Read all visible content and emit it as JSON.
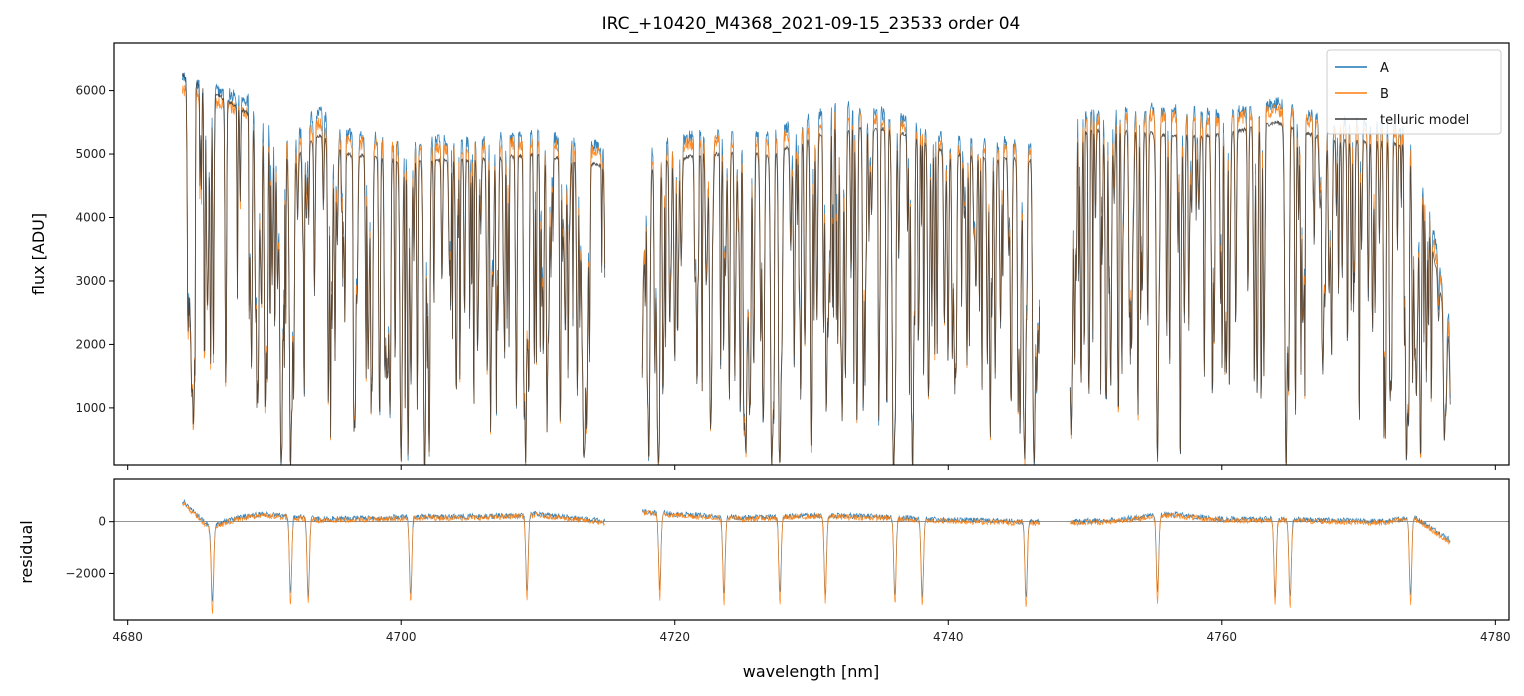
{
  "chart_data": [
    {
      "type": "line",
      "panel": "top",
      "title": "IRC_+10420_M4368_2021-09-15_23533  order 04",
      "xlabel": "",
      "ylabel": "flux [ADU]",
      "xlim": [
        4679,
        4781
      ],
      "ylim": [
        100,
        6750
      ],
      "yticks": [
        1000,
        2000,
        3000,
        4000,
        5000,
        6000
      ],
      "grid": false,
      "legend": "top-right",
      "gaps": [
        [
          4714.9,
          4717.6
        ],
        [
          4746.7,
          4748.9
        ]
      ],
      "deep_lines": [
        4691.2,
        4691.9,
        4700.0,
        4701.7,
        4709.1,
        4715.0,
        4718.1,
        4718.8,
        4727.1,
        4727.7,
        4736.0,
        4737.4,
        4745.6,
        4746.3,
        4755.3,
        4764.7,
        4773.5,
        4776.8
      ],
      "series": [
        {
          "name": "A",
          "color": "#1f77b4",
          "x": [
            4684,
            4688,
            4690,
            4692,
            4694,
            4696,
            4700,
            4705,
            4710,
            4714.9,
            4717.6,
            4722,
            4727,
            4732,
            4736,
            4740,
            4746.7,
            4748.9,
            4752,
            4756,
            4760,
            4764,
            4768,
            4772,
            4774,
            4776.7
          ],
          "y": [
            6200,
            5900,
            5800,
            5200,
            5700,
            5300,
            5200,
            5200,
            5300,
            5100,
            5100,
            5300,
            5300,
            5800,
            5600,
            5200,
            5200,
            5600,
            5700,
            5700,
            5600,
            5800,
            5500,
            5500,
            5400,
            2400
          ]
        },
        {
          "name": "B",
          "color": "#ff7f0e",
          "x": [
            4684,
            4688,
            4690,
            4692,
            4694,
            4696,
            4700,
            4705,
            4710,
            4714.9,
            4717.6,
            4722,
            4727,
            4732,
            4736,
            4740,
            4746.7,
            4748.9,
            4752,
            4756,
            4760,
            4764,
            4768,
            4772,
            4774,
            4776.7
          ],
          "y": [
            6000,
            5700,
            5600,
            5100,
            5500,
            5200,
            5100,
            5100,
            5200,
            5000,
            5000,
            5200,
            5200,
            5600,
            5500,
            5100,
            5100,
            5500,
            5600,
            5600,
            5500,
            5700,
            5400,
            5400,
            5300,
            2200
          ]
        },
        {
          "name": "telluric model",
          "color": "#3a3a3a",
          "x": [
            4684,
            4688,
            4690,
            4692,
            4694,
            4696,
            4700,
            4705,
            4710,
            4714.9,
            4717.6,
            4722,
            4727,
            4732,
            4736,
            4740,
            4746.7,
            4748.9,
            4752,
            4756,
            4760,
            4764,
            4768,
            4772,
            4774,
            4776.7
          ],
          "y": [
            6250,
            5750,
            5450,
            4900,
            5300,
            5000,
            4900,
            4900,
            5000,
            4800,
            4800,
            5000,
            5000,
            5400,
            5400,
            5000,
            4900,
            5300,
            5400,
            5300,
            5300,
            5500,
            5200,
            5200,
            5100,
            2000
          ]
        }
      ]
    },
    {
      "type": "line",
      "panel": "bottom",
      "title": "",
      "xlabel": "wavelength [nm]",
      "ylabel": "residual",
      "xlim": [
        4679,
        4781
      ],
      "ylim": [
        -3800,
        1650
      ],
      "yticks": [
        -2000,
        0
      ],
      "xticks": [
        4680,
        4700,
        4720,
        4740,
        4760,
        4780
      ],
      "hline": 0,
      "grid": false,
      "gaps": [
        [
          4714.9,
          4717.6
        ],
        [
          4746.7,
          4748.9
        ]
      ],
      "deep_lines": [
        4686.2,
        4691.9,
        4693.2,
        4700.7,
        4709.2,
        4718.9,
        4723.6,
        4727.7,
        4731.0,
        4736.1,
        4738.1,
        4745.7,
        4755.3,
        4763.9,
        4765.0,
        4773.8
      ],
      "series": [
        {
          "name": "A",
          "color": "#1f77b4",
          "x": [
            4684,
            4686,
            4688,
            4690,
            4694,
            4698,
            4702,
            4706,
            4710,
            4714.9,
            4717.6,
            4720,
            4725,
            4730,
            4735,
            4738,
            4742,
            4746.7,
            4748.9,
            4752,
            4756,
            4760,
            4764,
            4768,
            4772,
            4774,
            4776.7
          ],
          "y": [
            800,
            -200,
            150,
            300,
            100,
            150,
            200,
            200,
            300,
            0,
            400,
            300,
            150,
            250,
            200,
            100,
            50,
            0,
            0,
            50,
            300,
            100,
            100,
            50,
            0,
            200,
            -700
          ]
        },
        {
          "name": "B",
          "color": "#ff7f0e",
          "x": [
            4684,
            4686,
            4688,
            4690,
            4694,
            4698,
            4702,
            4706,
            4710,
            4714.9,
            4717.6,
            4720,
            4725,
            4730,
            4735,
            4738,
            4742,
            4746.7,
            4748.9,
            4752,
            4756,
            4760,
            4764,
            4768,
            4772,
            4774,
            4776.7
          ],
          "y": [
            750,
            -250,
            100,
            250,
            50,
            100,
            150,
            150,
            250,
            -50,
            350,
            250,
            100,
            200,
            150,
            50,
            0,
            -50,
            -50,
            0,
            250,
            50,
            50,
            0,
            -50,
            150,
            -800
          ]
        }
      ]
    }
  ]
}
